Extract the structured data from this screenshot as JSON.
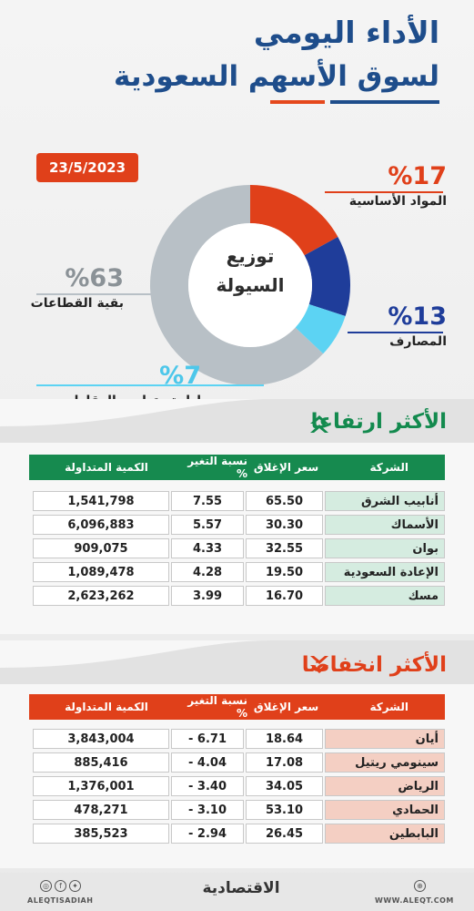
{
  "header": {
    "title_line1": "الأداء اليومي",
    "title_line2": "لسوق الأسهم السعودية",
    "date": "23/5/2023"
  },
  "colors": {
    "navy": "#1e4d8b",
    "orange": "#e0401a",
    "green": "#138a4e",
    "blue": "#1f3d9a",
    "cyan": "#5cd3f3",
    "gray": "#b8c0c6"
  },
  "chart_data": {
    "type": "pie",
    "center_label_line1": "توزيع",
    "center_label_line2": "السيولة",
    "slices": [
      {
        "label": "المواد الأساسية",
        "value": 17,
        "display": "%17",
        "color": "#e0401a"
      },
      {
        "label": "المصارف",
        "value": 13,
        "display": "%13",
        "color": "#1f3d9a"
      },
      {
        "label": "إدارة وتطوير العقارات",
        "value": 7,
        "display": "%7",
        "color": "#5cd3f3"
      },
      {
        "label": "بقية القطاعات",
        "value": 63,
        "display": "%63",
        "color": "#b8c0c6"
      }
    ]
  },
  "gainers": {
    "title": "الأكثر ارتفاعا",
    "header": {
      "company": "الشركة",
      "close": "سعر الإغلاق",
      "change": "نسبة التغير %",
      "volume": "الكمية المتداولة"
    },
    "rows": [
      {
        "company": "أنابيب الشرق",
        "close": "65.50",
        "change": "7.55",
        "volume": "1,541,798"
      },
      {
        "company": "الأسماك",
        "close": "30.30",
        "change": "5.57",
        "volume": "6,096,883"
      },
      {
        "company": "بوان",
        "close": "32.55",
        "change": "4.33",
        "volume": "909,075"
      },
      {
        "company": "الإعادة السعودية",
        "close": "19.50",
        "change": "4.28",
        "volume": "1,089,478"
      },
      {
        "company": "مسك",
        "close": "16.70",
        "change": "3.99",
        "volume": "2,623,262"
      }
    ]
  },
  "losers": {
    "title": "الأكثر انخفاضا",
    "header": {
      "company": "الشركة",
      "close": "سعر الإغلاق",
      "change": "نسبة التغير %",
      "volume": "الكمية المتداولة"
    },
    "rows": [
      {
        "company": "أيان",
        "close": "18.64",
        "change": "6.71 -",
        "volume": "3,843,004"
      },
      {
        "company": "سينومي ريتيل",
        "close": "17.08",
        "change": "4.04 -",
        "volume": "885,416"
      },
      {
        "company": "الرياض",
        "close": "34.05",
        "change": "3.40 -",
        "volume": "1,376,001"
      },
      {
        "company": "الحمادي",
        "close": "53.10",
        "change": "3.10 -",
        "volume": "478,271"
      },
      {
        "company": "البابطين",
        "close": "26.45",
        "change": "2.94 -",
        "volume": "385,523"
      }
    ]
  },
  "footer": {
    "brand": "الاقتصادية",
    "handle": "ALEQTISADIAH",
    "site": "WWW.ALEQT.COM",
    "social_icons": [
      "instagram-icon",
      "facebook-icon",
      "twitter-icon"
    ],
    "site_icon": "globe-icon"
  }
}
